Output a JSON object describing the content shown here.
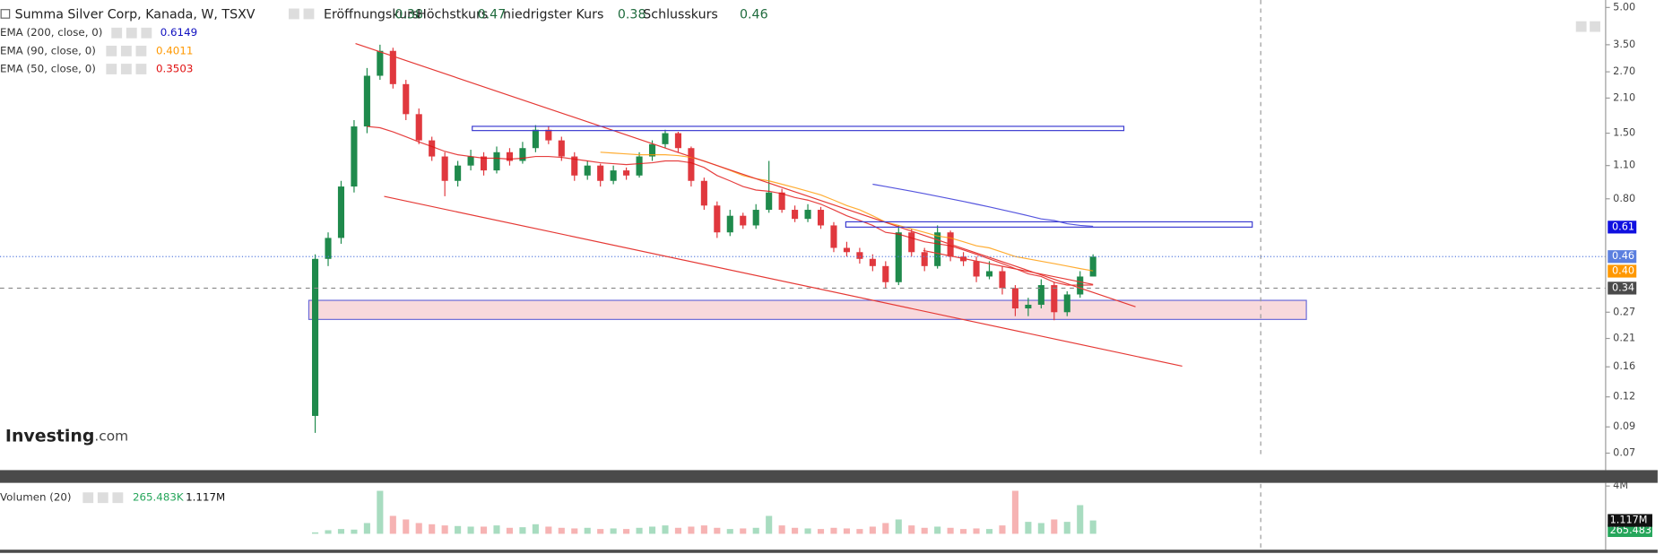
{
  "chart_data": {
    "type": "candlestick",
    "title": "Summa Silver Corp, Kanada, W, TSXV",
    "ohlc_labels": [
      "Eröffnungskurs",
      "Höchstkurs",
      "niedrigster Kurs",
      "Schlusskurs"
    ],
    "open": [
      0.1,
      0.45,
      0.55,
      0.9,
      1.6,
      2.6,
      3.3,
      2.4,
      1.8,
      1.4,
      1.2,
      0.95,
      1.1,
      1.2,
      1.05,
      1.25,
      1.15,
      1.3,
      1.55,
      1.4,
      1.2,
      1.0,
      1.1,
      0.95,
      1.05,
      1.0,
      1.2,
      1.35,
      1.5,
      1.3,
      0.95,
      0.75,
      0.58,
      0.68,
      0.62,
      0.72,
      0.85,
      0.72,
      0.66,
      0.72,
      0.62,
      0.5,
      0.48,
      0.45,
      0.42,
      0.36,
      0.58,
      0.48,
      0.42,
      0.58,
      0.46,
      0.44,
      0.38,
      0.4,
      0.34,
      0.28,
      0.29,
      0.35,
      0.27,
      0.32,
      0.38
    ],
    "high": [
      0.47,
      0.58,
      0.95,
      1.7,
      2.8,
      3.5,
      3.4,
      2.5,
      1.9,
      1.45,
      1.25,
      1.15,
      1.28,
      1.25,
      1.32,
      1.3,
      1.38,
      1.62,
      1.6,
      1.45,
      1.25,
      1.15,
      1.12,
      1.1,
      1.08,
      1.25,
      1.4,
      1.55,
      1.52,
      1.32,
      0.98,
      0.78,
      0.72,
      0.7,
      0.76,
      1.15,
      0.88,
      0.75,
      0.76,
      0.74,
      0.64,
      0.53,
      0.5,
      0.47,
      0.44,
      0.62,
      0.6,
      0.5,
      0.62,
      0.59,
      0.48,
      0.46,
      0.44,
      0.42,
      0.35,
      0.31,
      0.37,
      0.36,
      0.33,
      0.4,
      0.47
    ],
    "low": [
      0.085,
      0.42,
      0.52,
      0.85,
      1.5,
      2.5,
      2.3,
      1.7,
      1.35,
      1.15,
      0.82,
      0.9,
      1.05,
      1.0,
      1.02,
      1.1,
      1.12,
      1.25,
      1.35,
      1.15,
      0.95,
      0.96,
      0.9,
      0.92,
      0.96,
      0.98,
      1.15,
      1.3,
      1.25,
      0.9,
      0.72,
      0.55,
      0.56,
      0.6,
      0.6,
      0.7,
      0.7,
      0.64,
      0.64,
      0.6,
      0.48,
      0.46,
      0.43,
      0.4,
      0.34,
      0.35,
      0.46,
      0.4,
      0.41,
      0.44,
      0.42,
      0.36,
      0.37,
      0.32,
      0.26,
      0.26,
      0.28,
      0.25,
      0.26,
      0.31,
      0.38
    ],
    "close": [
      0.45,
      0.55,
      0.9,
      1.6,
      2.6,
      3.3,
      2.4,
      1.8,
      1.4,
      1.2,
      0.95,
      1.1,
      1.2,
      1.05,
      1.25,
      1.15,
      1.3,
      1.55,
      1.4,
      1.2,
      1.0,
      1.1,
      0.95,
      1.05,
      1.0,
      1.2,
      1.35,
      1.5,
      1.3,
      0.95,
      0.75,
      0.58,
      0.68,
      0.62,
      0.72,
      0.85,
      0.72,
      0.66,
      0.72,
      0.62,
      0.5,
      0.48,
      0.45,
      0.42,
      0.36,
      0.58,
      0.48,
      0.42,
      0.58,
      0.46,
      0.44,
      0.38,
      0.4,
      0.34,
      0.28,
      0.29,
      0.35,
      0.27,
      0.32,
      0.38,
      0.46
    ],
    "up_color": "#1f8a4c",
    "down_color": "#e0383e",
    "log_scale": true,
    "ylim": [
      0.07,
      5
    ],
    "yticks": [
      {
        "value": 5,
        "label": "5.00"
      },
      {
        "value": 3.5,
        "label": "3.50"
      },
      {
        "value": 2.7,
        "label": "2.70"
      },
      {
        "value": 2.1,
        "label": "2.10"
      },
      {
        "value": 1.5,
        "label": "1.50"
      },
      {
        "value": 1.1,
        "label": "1.10"
      },
      {
        "value": 0.8,
        "label": "0.80"
      },
      {
        "value": 0.27,
        "label": "0.27"
      },
      {
        "value": 0.21,
        "label": "0.21"
      },
      {
        "value": 0.16,
        "label": "0.16"
      },
      {
        "value": 0.12,
        "label": "0.12"
      },
      {
        "value": 0.09,
        "label": "0.09"
      },
      {
        "value": 0.07,
        "label": "0.07"
      }
    ],
    "series": [
      {
        "name": "EMA (200, close, 0)",
        "color": "#2a2ad6",
        "values": [
          null,
          null,
          null,
          null,
          null,
          null,
          null,
          null,
          null,
          null,
          null,
          null,
          null,
          null,
          null,
          null,
          null,
          null,
          null,
          null,
          null,
          null,
          null,
          null,
          null,
          null,
          null,
          null,
          null,
          null,
          null,
          null,
          null,
          null,
          null,
          null,
          null,
          null,
          null,
          null,
          null,
          null,
          null,
          0.92,
          0.9,
          0.88,
          0.86,
          0.84,
          0.82,
          0.8,
          0.78,
          0.76,
          0.74,
          0.72,
          0.7,
          0.68,
          0.66,
          0.65,
          0.63,
          0.62,
          0.6149
        ]
      },
      {
        "name": "EMA (90, close, 0)",
        "color": "#ff9800",
        "values": [
          null,
          null,
          null,
          null,
          null,
          null,
          null,
          null,
          null,
          null,
          null,
          null,
          null,
          null,
          null,
          null,
          null,
          null,
          null,
          null,
          null,
          null,
          1.25,
          1.24,
          1.23,
          1.22,
          1.22,
          1.22,
          1.21,
          1.19,
          1.15,
          1.1,
          1.05,
          1.0,
          0.97,
          0.95,
          0.92,
          0.89,
          0.86,
          0.83,
          0.79,
          0.75,
          0.72,
          0.68,
          0.64,
          0.62,
          0.6,
          0.58,
          0.56,
          0.55,
          0.53,
          0.51,
          0.5,
          0.48,
          0.46,
          0.45,
          0.44,
          0.43,
          0.42,
          0.41,
          0.4011
        ]
      },
      {
        "name": "EMA (50, close, 0)",
        "color": "#e01010",
        "values": [
          null,
          null,
          null,
          null,
          1.6,
          1.58,
          1.52,
          1.45,
          1.38,
          1.32,
          1.26,
          1.22,
          1.2,
          1.18,
          1.18,
          1.17,
          1.18,
          1.2,
          1.2,
          1.19,
          1.17,
          1.15,
          1.13,
          1.12,
          1.11,
          1.12,
          1.13,
          1.15,
          1.15,
          1.13,
          1.08,
          1.0,
          0.95,
          0.9,
          0.87,
          0.86,
          0.84,
          0.81,
          0.79,
          0.76,
          0.72,
          0.68,
          0.65,
          0.62,
          0.58,
          0.57,
          0.55,
          0.53,
          0.52,
          0.51,
          0.49,
          0.47,
          0.45,
          0.43,
          0.41,
          0.39,
          0.38,
          0.36,
          0.35,
          0.35,
          0.3503
        ]
      }
    ],
    "price_tags": [
      {
        "value": 0.61,
        "label": "0.61",
        "color": "#1010e0"
      },
      {
        "value": 0.46,
        "label": "0.46",
        "color": "#5b7fdf"
      },
      {
        "value": 0.4,
        "label": "0.40",
        "color": "#ff9800"
      },
      {
        "value": 0.34,
        "label": "0.34",
        "color": "#4a4a4a"
      }
    ],
    "volume": {
      "name": "Volumen (20)",
      "values": [
        120000,
        300000,
        400000,
        350000,
        900000,
        3600000,
        1500000,
        1200000,
        900000,
        800000,
        700000,
        650000,
        600000,
        600000,
        700000,
        500000,
        550000,
        800000,
        600000,
        500000,
        450000,
        500000,
        400000,
        450000,
        400000,
        500000,
        600000,
        700000,
        500000,
        600000,
        700000,
        500000,
        400000,
        450000,
        500000,
        1500000,
        700000,
        500000,
        450000,
        400000,
        500000,
        450000,
        400000,
        600000,
        900000,
        1200000,
        700000,
        500000,
        600000,
        500000,
        400000,
        450000,
        400000,
        700000,
        3600000,
        1000000,
        900000,
        1200000,
        1000000,
        2400000,
        1117000
      ],
      "up_color": "#a8dcc0",
      "down_color": "#f6b3b3",
      "ylim": [
        0,
        4000000
      ],
      "yticks": [
        {
          "value": 4000000,
          "label": "4M"
        }
      ],
      "tags": [
        {
          "value": 265483,
          "label": "265.483K",
          "color": "#26a65b"
        },
        {
          "value": 1117000,
          "label": "1.117M",
          "color": "#111111"
        }
      ]
    },
    "watermark": "Investing",
    "watermark_suffix": ".com"
  }
}
